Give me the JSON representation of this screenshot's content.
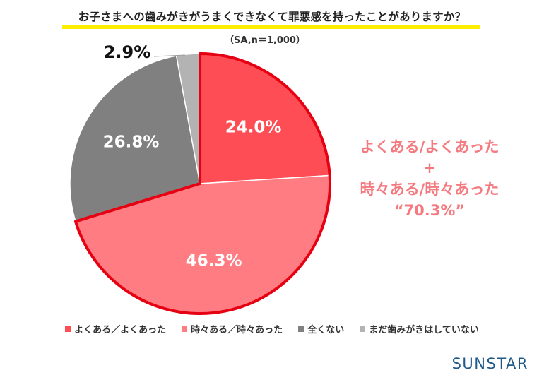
{
  "chart_data": {
    "type": "pie",
    "title": "お子さまへの歯みがきがうまくできなくて罪悪感を持ったことがありますか？",
    "subtitle": "（SA,n＝1,000）",
    "categories": [
      "よくある／よくあった",
      "時々ある／時々あった",
      "全くない",
      "まだ歯みがきはしていない"
    ],
    "values": [
      24.0,
      46.3,
      26.8,
      2.9
    ],
    "value_labels": [
      "24.0%",
      "46.3%",
      "26.8%",
      "2.9%"
    ],
    "colors": [
      "#ff4d55",
      "#ff7c83",
      "#808080",
      "#b3b3b3"
    ],
    "start_angle_deg": 0,
    "direction": "clockwise",
    "highlight_outline_color": "#e60012",
    "legend_position": "bottom",
    "annotation": {
      "lines": [
        "よくある/よくあった",
        "+",
        "時々ある/時々あった",
        "“70.3%”"
      ],
      "color": "#f47a80"
    }
  },
  "brand": "SUNSTAR"
}
